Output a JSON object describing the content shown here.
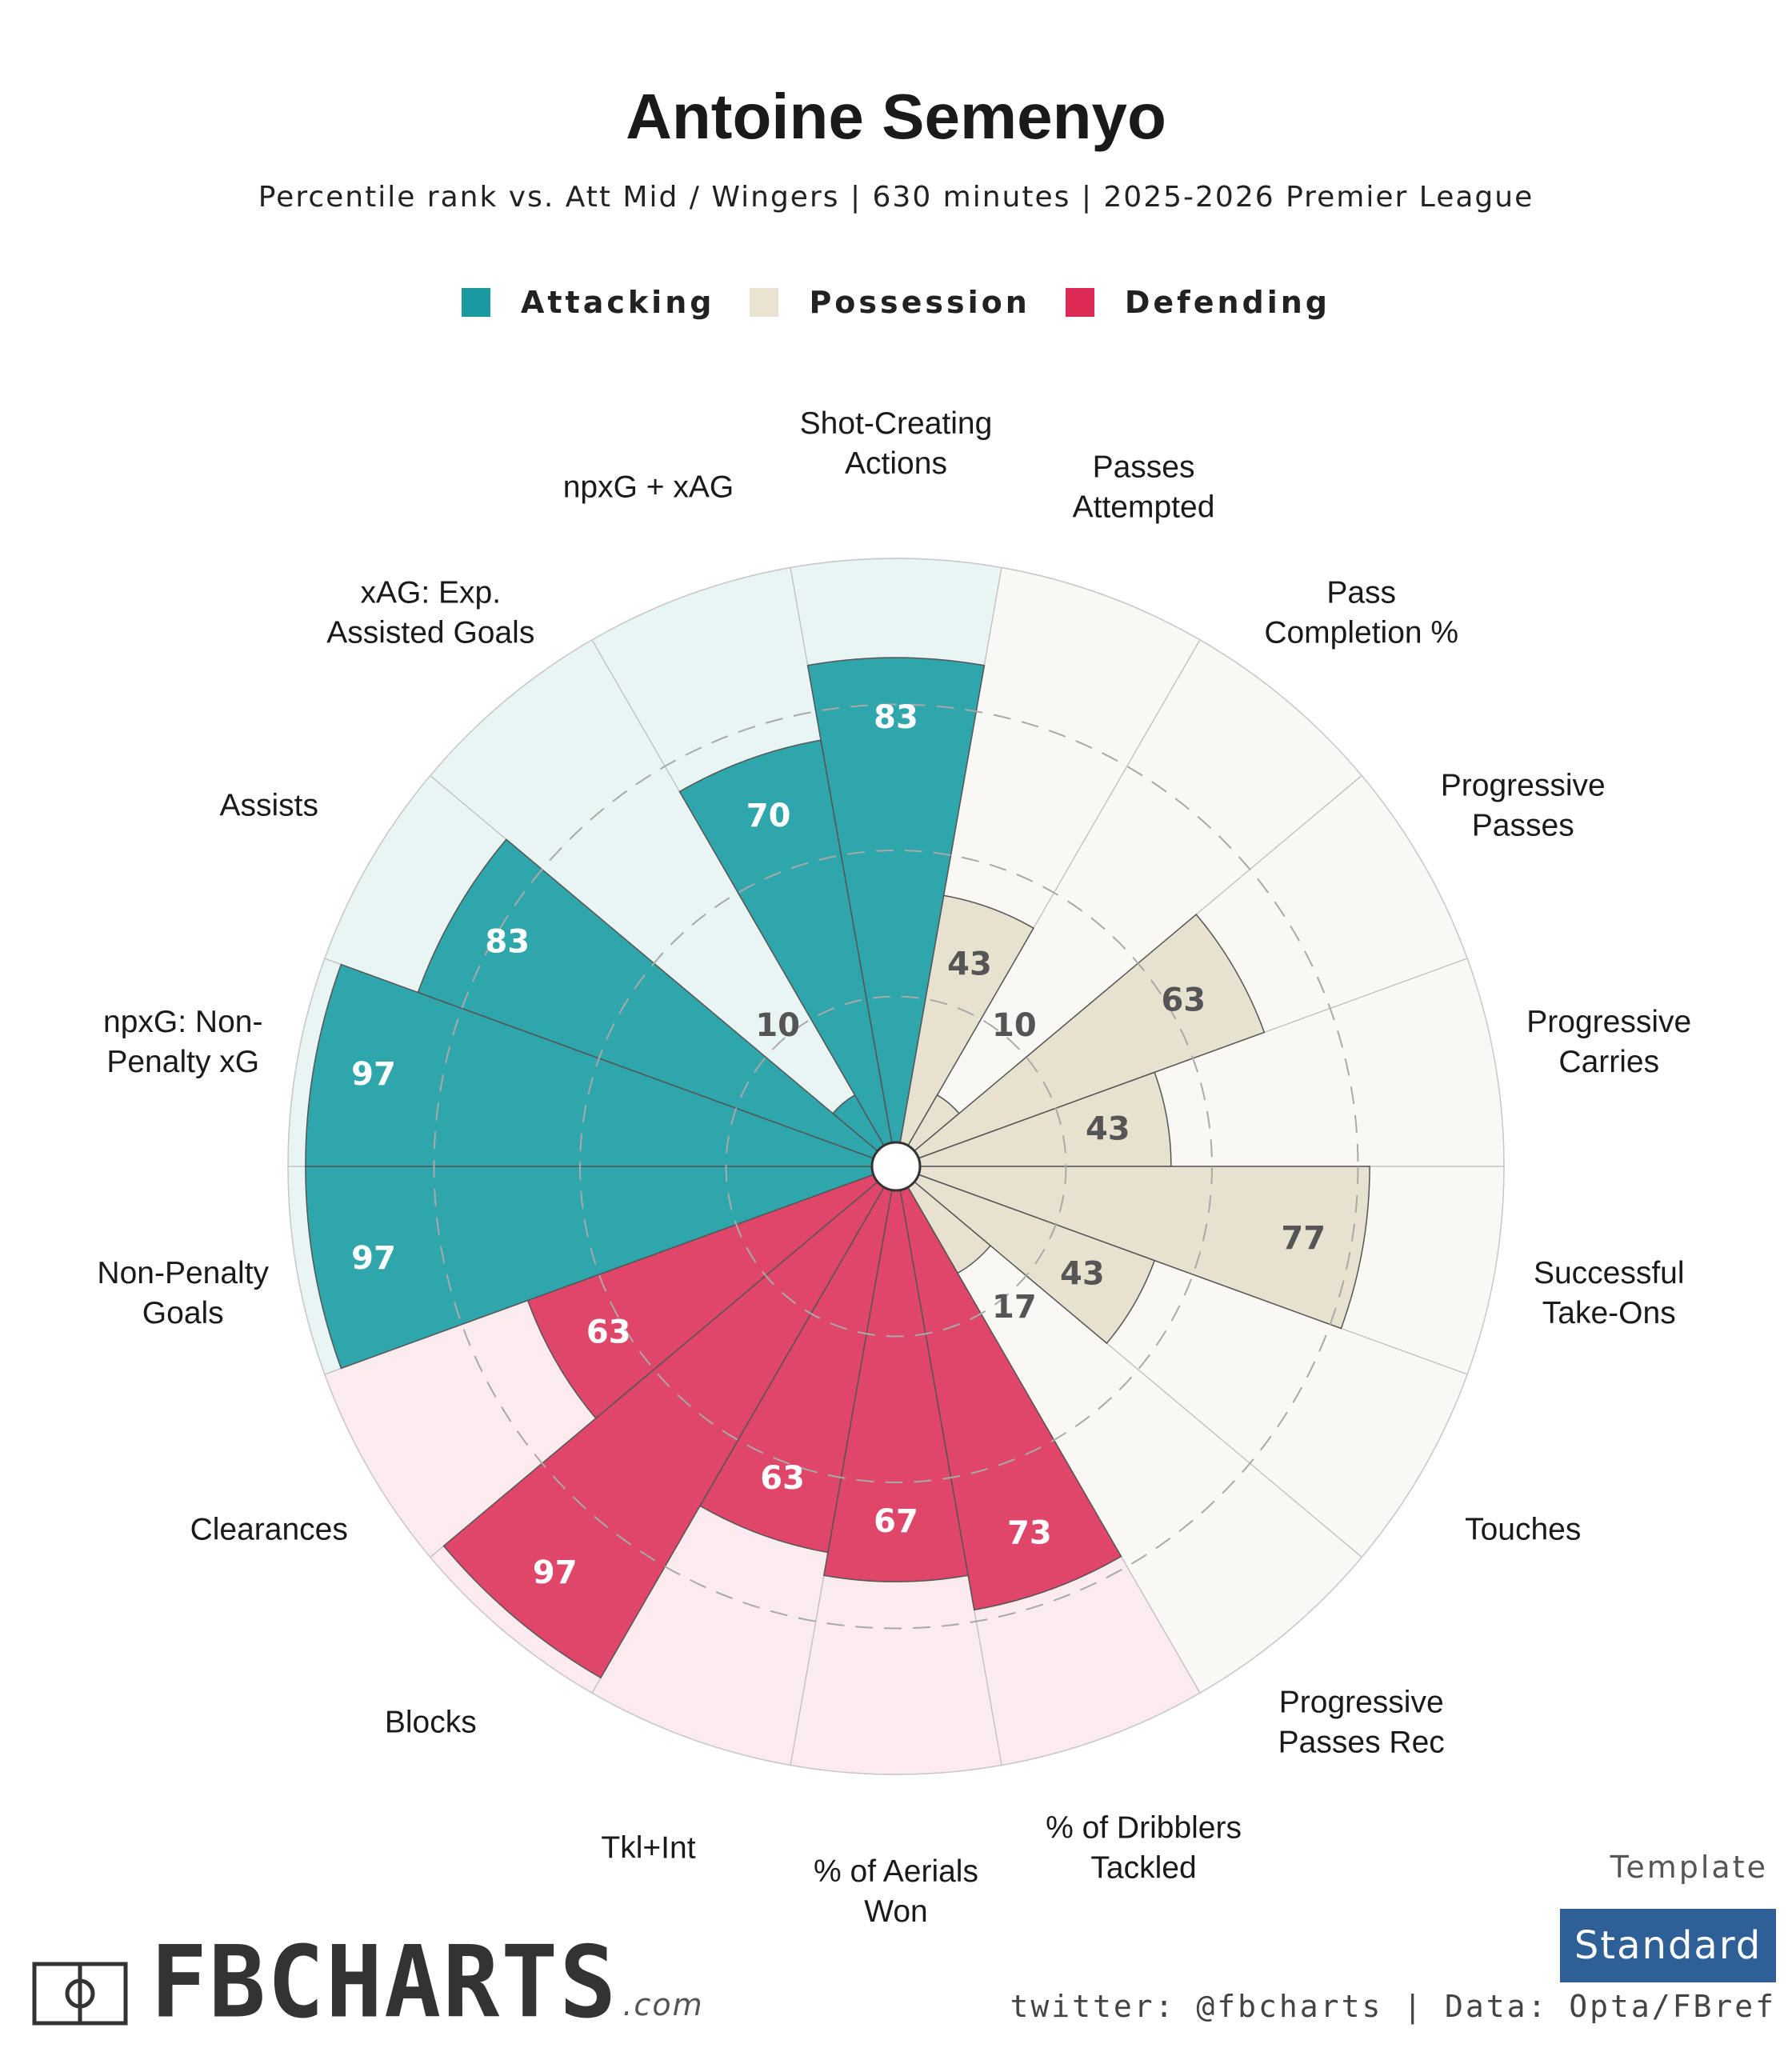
{
  "header": {
    "title": "Antoine Semenyo",
    "subtitle": "Percentile rank vs. Att Mid / Wingers | 630 minutes | 2025-2026 Premier League"
  },
  "legend": [
    {
      "label": "Attacking",
      "color": "#1a9aa0"
    },
    {
      "label": "Possession",
      "color": "#e9e3d2"
    },
    {
      "label": "Defending",
      "color": "#dd2b55"
    }
  ],
  "chart_data": {
    "type": "polar-bar",
    "title": "Antoine Semenyo",
    "rmax": 100,
    "gridlines": [
      25,
      50,
      75
    ],
    "categories": [
      {
        "label": "Shot-Creating\nActions",
        "value": 83,
        "group": "Attacking"
      },
      {
        "label": "Passes\nAttempted",
        "value": 43,
        "group": "Possession"
      },
      {
        "label": "Pass\nCompletion %",
        "value": 10,
        "group": "Possession"
      },
      {
        "label": "Progressive\nPasses",
        "value": 63,
        "group": "Possession"
      },
      {
        "label": "Progressive\nCarries",
        "value": 43,
        "group": "Possession"
      },
      {
        "label": "Successful\nTake-Ons",
        "value": 77,
        "group": "Possession"
      },
      {
        "label": "Touches",
        "value": 43,
        "group": "Possession"
      },
      {
        "label": "Progressive\nPasses Rec",
        "value": 17,
        "group": "Possession"
      },
      {
        "label": "% of Dribblers\nTackled",
        "value": 73,
        "group": "Defending"
      },
      {
        "label": "% of Aerials\nWon",
        "value": 67,
        "group": "Defending"
      },
      {
        "label": "Tkl+Int",
        "value": 63,
        "group": "Defending"
      },
      {
        "label": "Blocks",
        "value": 97,
        "group": "Defending"
      },
      {
        "label": "Clearances",
        "value": 63,
        "group": "Defending"
      },
      {
        "label": "Non-Penalty\nGoals",
        "value": 97,
        "group": "Attacking"
      },
      {
        "label": "npxG: Non-\nPenalty xG",
        "value": 97,
        "group": "Attacking"
      },
      {
        "label": "Assists",
        "value": 83,
        "group": "Attacking"
      },
      {
        "label": "xAG: Exp.\nAssisted Goals",
        "value": 10,
        "group": "Attacking"
      },
      {
        "label": "npxG + xAG",
        "value": 70,
        "group": "Attacking"
      }
    ]
  },
  "footer": {
    "template_label": "Template",
    "template_value": "Standard",
    "credit": "twitter: @fbcharts | Data: Opta/FBref",
    "logo_text": "FBCHARTS",
    "logo_suffix": ".com"
  }
}
